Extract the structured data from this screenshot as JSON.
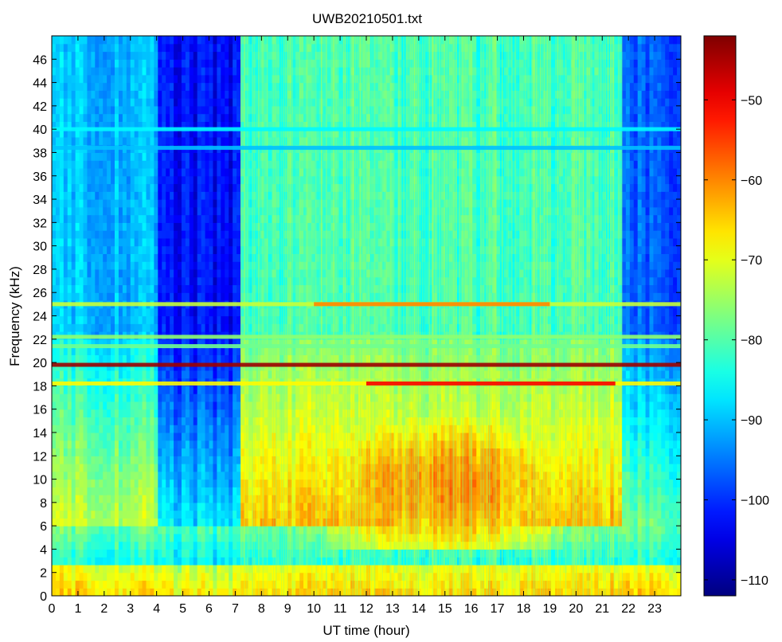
{
  "chart_data": {
    "type": "heatmap",
    "title": "UWB20210501.txt",
    "xlabel": "UT time (hour)",
    "ylabel": "Frequency (kHz)",
    "xlim": [
      0,
      24
    ],
    "ylim": [
      0,
      48
    ],
    "x_ticks": [
      0,
      1,
      2,
      3,
      4,
      5,
      6,
      7,
      8,
      9,
      10,
      11,
      12,
      13,
      14,
      15,
      16,
      17,
      18,
      19,
      20,
      21,
      22,
      23
    ],
    "y_ticks": [
      0,
      2,
      4,
      6,
      8,
      10,
      12,
      14,
      16,
      18,
      20,
      22,
      24,
      26,
      28,
      30,
      32,
      34,
      36,
      38,
      40,
      42,
      44,
      46
    ],
    "colorbar": {
      "colormap": "jet",
      "range": [
        -112,
        -42
      ],
      "ticks": [
        -110,
        -100,
        -90,
        -80,
        -70,
        -60,
        -50
      ]
    },
    "color_stops": [
      "#00007f",
      "#0000ff",
      "#007fff",
      "#00ffff",
      "#7fff7f",
      "#ffff00",
      "#ff7f00",
      "#ff0000",
      "#7f0000"
    ],
    "features": {
      "background_by_hour": [
        {
          "start": 0,
          "end": 4,
          "high_freq_level": -90
        },
        {
          "start": 4,
          "end": 7.2,
          "high_freq_level": -103
        },
        {
          "start": 7.2,
          "end": 21.8,
          "high_freq_level": -82
        },
        {
          "start": 21.8,
          "end": 24,
          "high_freq_level": -97
        }
      ],
      "horizontal_lines": [
        {
          "freq_khz": 19.8,
          "start": 0,
          "end": 24,
          "level": -44
        },
        {
          "freq_khz": 18.2,
          "start": 0,
          "end": 24,
          "level": -68
        },
        {
          "freq_khz": 18.2,
          "start": 12,
          "end": 21.5,
          "level": -50
        },
        {
          "freq_khz": 25.0,
          "start": 0,
          "end": 24,
          "level": -72
        },
        {
          "freq_khz": 25.0,
          "start": 10,
          "end": 19,
          "level": -60
        },
        {
          "freq_khz": 22.2,
          "start": 0,
          "end": 24,
          "level": -76
        },
        {
          "freq_khz": 21.4,
          "start": 0,
          "end": 24,
          "level": -78
        },
        {
          "freq_khz": 40.0,
          "start": 0,
          "end": 24,
          "level": -86
        },
        {
          "freq_khz": 38.4,
          "start": 0,
          "end": 24,
          "level": -90
        }
      ],
      "broadband_enhancement": {
        "start": 10.5,
        "end": 19.5,
        "freq_min": 4,
        "freq_max": 15,
        "peak_level": -60
      }
    }
  }
}
